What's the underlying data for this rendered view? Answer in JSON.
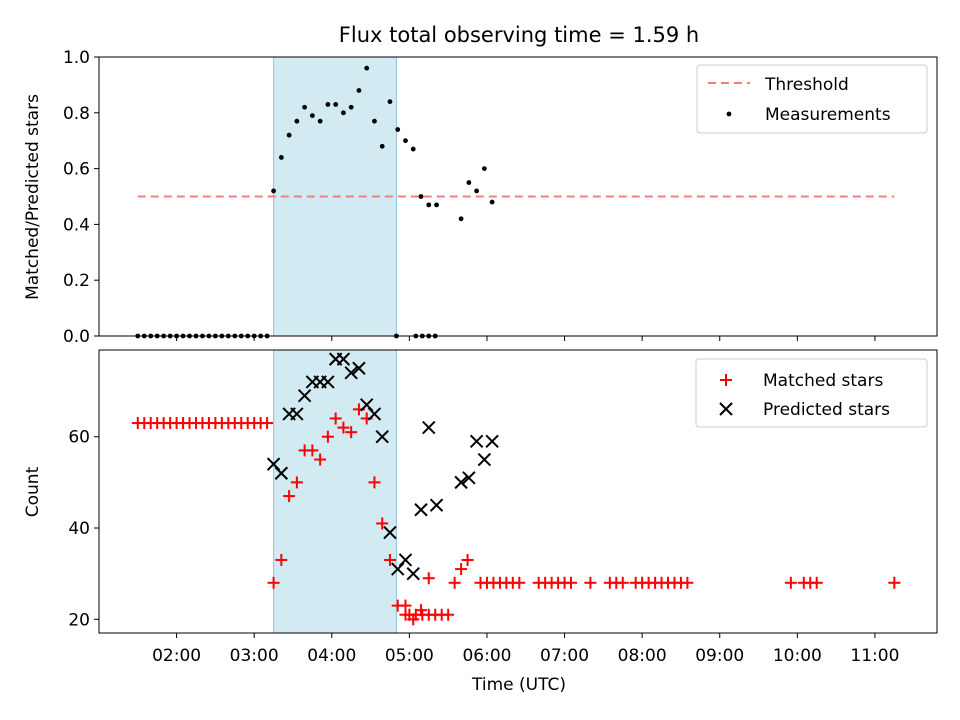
{
  "figure_title": "Flux total observing time = 1.59 h",
  "xlabel": "Time (UTC)",
  "x_tick_labels": [
    "02:00",
    "03:00",
    "04:00",
    "05:00",
    "06:00",
    "07:00",
    "08:00",
    "09:00",
    "10:00",
    "11:00"
  ],
  "colors": {
    "threshold": "#f47e7e",
    "measurements": "#000000",
    "matched": "#ff0000",
    "predicted": "#000000",
    "span": "#add8e6"
  },
  "chart_data": [
    {
      "type": "scatter",
      "xlabel": "Time (UTC)",
      "ylabel": "Matched/Predicted stars",
      "xlim": [
        "01:00",
        "11:48"
      ],
      "ylim": [
        0,
        1.0
      ],
      "y_ticks": [
        "0.0",
        "0.2",
        "0.4",
        "0.6",
        "0.8",
        "1.0"
      ],
      "y_tick_values": [
        0,
        0.2,
        0.4,
        0.6,
        0.8,
        1.0
      ],
      "legend_position": "top-right",
      "shaded_span": [
        "03:15",
        "04:50"
      ],
      "threshold": {
        "name": "Threshold",
        "y": 0.5,
        "x_range": [
          "01:30",
          "11:15"
        ]
      },
      "series": [
        {
          "name": "Measurements",
          "marker": "dot",
          "points": [
            [
              "01:30",
              0
            ],
            [
              "01:35",
              0
            ],
            [
              "01:40",
              0
            ],
            [
              "01:45",
              0
            ],
            [
              "01:50",
              0
            ],
            [
              "01:55",
              0
            ],
            [
              "02:00",
              0
            ],
            [
              "02:05",
              0
            ],
            [
              "02:10",
              0
            ],
            [
              "02:15",
              0
            ],
            [
              "02:20",
              0
            ],
            [
              "02:25",
              0
            ],
            [
              "02:30",
              0
            ],
            [
              "02:35",
              0
            ],
            [
              "02:40",
              0
            ],
            [
              "02:45",
              0
            ],
            [
              "02:50",
              0
            ],
            [
              "02:55",
              0
            ],
            [
              "03:00",
              0
            ],
            [
              "03:05",
              0
            ],
            [
              "03:10",
              0
            ],
            [
              "03:15",
              0.52
            ],
            [
              "03:21",
              0.64
            ],
            [
              "03:27",
              0.72
            ],
            [
              "03:33",
              0.77
            ],
            [
              "03:39",
              0.82
            ],
            [
              "03:45",
              0.79
            ],
            [
              "03:51",
              0.77
            ],
            [
              "03:57",
              0.83
            ],
            [
              "04:03",
              0.83
            ],
            [
              "04:09",
              0.8
            ],
            [
              "04:15",
              0.82
            ],
            [
              "04:21",
              0.88
            ],
            [
              "04:27",
              0.96
            ],
            [
              "04:33",
              0.77
            ],
            [
              "04:39",
              0.68
            ],
            [
              "04:45",
              0.84
            ],
            [
              "04:51",
              0.74
            ],
            [
              "04:57",
              0.7
            ],
            [
              "05:03",
              0.67
            ],
            [
              "05:09",
              0.5
            ],
            [
              "05:15",
              0.47
            ],
            [
              "05:21",
              0.47
            ],
            [
              "04:50",
              0
            ],
            [
              "05:05",
              0
            ],
            [
              "05:10",
              0
            ],
            [
              "05:15",
              0
            ],
            [
              "05:20",
              0
            ],
            [
              "05:40",
              0.42
            ],
            [
              "05:46",
              0.55
            ],
            [
              "05:52",
              0.52
            ],
            [
              "05:58",
              0.6
            ],
            [
              "06:04",
              0.48
            ]
          ],
          "note_unused": []
        }
      ]
    },
    {
      "type": "scatter",
      "xlabel": "Time (UTC)",
      "ylabel": "Count",
      "xlim": [
        "01:00",
        "11:48"
      ],
      "ylim": [
        17,
        79
      ],
      "y_ticks": [
        "20",
        "40",
        "60"
      ],
      "y_tick_values": [
        20,
        40,
        60
      ],
      "legend_position": "top-right",
      "shaded_span": [
        "03:15",
        "04:50"
      ],
      "series": [
        {
          "name": "Matched stars",
          "marker": "plus",
          "points": [
            [
              "01:30",
              63
            ],
            [
              "01:35",
              63
            ],
            [
              "01:40",
              63
            ],
            [
              "01:45",
              63
            ],
            [
              "01:50",
              63
            ],
            [
              "01:55",
              63
            ],
            [
              "02:00",
              63
            ],
            [
              "02:05",
              63
            ],
            [
              "02:10",
              63
            ],
            [
              "02:15",
              63
            ],
            [
              "02:20",
              63
            ],
            [
              "02:25",
              63
            ],
            [
              "02:30",
              63
            ],
            [
              "02:35",
              63
            ],
            [
              "02:40",
              63
            ],
            [
              "02:45",
              63
            ],
            [
              "02:50",
              63
            ],
            [
              "02:55",
              63
            ],
            [
              "03:00",
              63
            ],
            [
              "03:05",
              63
            ],
            [
              "03:10",
              63
            ],
            [
              "03:15",
              28
            ],
            [
              "03:21",
              33
            ],
            [
              "03:27",
              47
            ],
            [
              "03:33",
              50
            ],
            [
              "03:39",
              57
            ],
            [
              "03:45",
              57
            ],
            [
              "03:51",
              55
            ],
            [
              "03:57",
              60
            ],
            [
              "04:03",
              64
            ],
            [
              "04:09",
              62
            ],
            [
              "04:15",
              61
            ],
            [
              "04:21",
              66
            ],
            [
              "04:27",
              64
            ],
            [
              "04:33",
              50
            ],
            [
              "04:39",
              41
            ],
            [
              "04:45",
              33
            ],
            [
              "04:51",
              23
            ],
            [
              "04:57",
              23
            ],
            [
              "05:03",
              20
            ],
            [
              "05:09",
              22
            ],
            [
              "05:15",
              29
            ],
            [
              "04:57",
              21
            ],
            [
              "05:00",
              21
            ],
            [
              "05:05",
              21
            ],
            [
              "05:10",
              21
            ],
            [
              "05:15",
              21
            ],
            [
              "05:20",
              21
            ],
            [
              "05:25",
              21
            ],
            [
              "05:30",
              21
            ],
            [
              "05:35",
              28
            ],
            [
              "05:40",
              31
            ],
            [
              "05:45",
              33
            ],
            [
              "05:55",
              28
            ],
            [
              "06:00",
              28
            ],
            [
              "06:05",
              28
            ],
            [
              "06:10",
              28
            ],
            [
              "06:15",
              28
            ],
            [
              "06:20",
              28
            ],
            [
              "06:25",
              28
            ],
            [
              "06:40",
              28
            ],
            [
              "06:45",
              28
            ],
            [
              "06:50",
              28
            ],
            [
              "06:55",
              28
            ],
            [
              "07:00",
              28
            ],
            [
              "07:05",
              28
            ],
            [
              "07:20",
              28
            ],
            [
              "07:35",
              28
            ],
            [
              "07:40",
              28
            ],
            [
              "07:45",
              28
            ],
            [
              "07:55",
              28
            ],
            [
              "08:00",
              28
            ],
            [
              "08:05",
              28
            ],
            [
              "08:10",
              28
            ],
            [
              "08:15",
              28
            ],
            [
              "08:20",
              28
            ],
            [
              "08:25",
              28
            ],
            [
              "08:30",
              28
            ],
            [
              "08:35",
              28
            ],
            [
              "09:55",
              28
            ],
            [
              "10:05",
              28
            ],
            [
              "10:10",
              28
            ],
            [
              "10:15",
              28
            ],
            [
              "11:15",
              28
            ]
          ]
        },
        {
          "name": "Predicted stars",
          "marker": "cross",
          "points": [
            [
              "03:15",
              54
            ],
            [
              "03:21",
              52
            ],
            [
              "03:27",
              65
            ],
            [
              "03:33",
              65
            ],
            [
              "03:39",
              69
            ],
            [
              "03:45",
              72
            ],
            [
              "03:51",
              72
            ],
            [
              "03:57",
              72
            ],
            [
              "04:03",
              77
            ],
            [
              "04:09",
              77
            ],
            [
              "04:15",
              74
            ],
            [
              "04:21",
              75
            ],
            [
              "04:27",
              67
            ],
            [
              "04:33",
              65
            ],
            [
              "04:39",
              60
            ],
            [
              "04:45",
              39
            ],
            [
              "04:51",
              31
            ],
            [
              "04:57",
              33
            ],
            [
              "05:03",
              30
            ],
            [
              "05:09",
              44
            ],
            [
              "05:15",
              62
            ],
            [
              "05:21",
              45
            ],
            [
              "05:40",
              50
            ],
            [
              "05:46",
              51
            ],
            [
              "05:52",
              59
            ],
            [
              "05:58",
              55
            ],
            [
              "06:04",
              59
            ]
          ]
        }
      ]
    }
  ]
}
